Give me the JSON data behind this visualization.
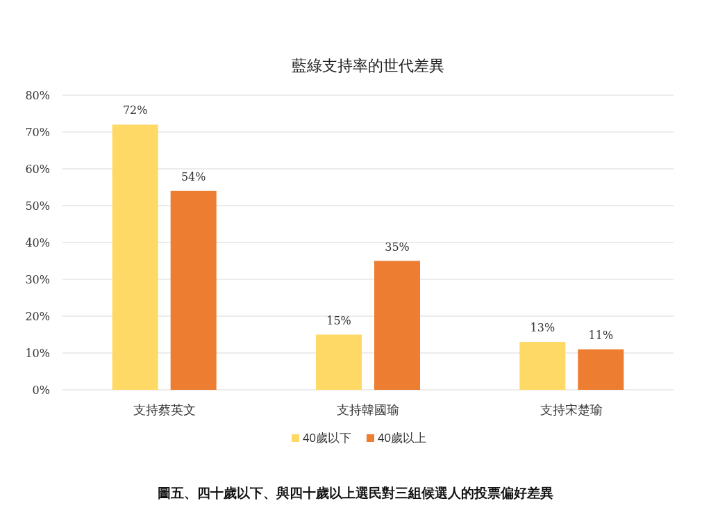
{
  "chart_data": {
    "type": "bar",
    "title": "藍綠支持率的世代差異",
    "categories": [
      "支持蔡英文",
      "支持韓國瑜",
      "支持宋楚瑜"
    ],
    "series": [
      {
        "name": "40歲以下",
        "color": "#ffd966",
        "values": [
          72,
          15,
          13
        ],
        "value_labels": [
          "72%",
          "15%",
          "13%"
        ]
      },
      {
        "name": "40歲以上",
        "color": "#ed7d31",
        "values": [
          54,
          35,
          11
        ],
        "value_labels": [
          "54%",
          "35%",
          "11%"
        ]
      }
    ],
    "ylim": [
      0,
      80
    ],
    "yticks": [
      {
        "value": 0,
        "label": "0%"
      },
      {
        "value": 10,
        "label": "10%"
      },
      {
        "value": 20,
        "label": "20%"
      },
      {
        "value": 30,
        "label": "30%"
      },
      {
        "value": 40,
        "label": "40%"
      },
      {
        "value": 50,
        "label": "50%"
      },
      {
        "value": 60,
        "label": "60%"
      },
      {
        "value": 70,
        "label": "70%"
      },
      {
        "value": 80,
        "label": "80%"
      }
    ],
    "grid": "y",
    "legend": "bottom",
    "annotations": [
      "圖五、四十歲以下、與四十歲以上選民對三組候選人的投票偏好差異"
    ]
  }
}
